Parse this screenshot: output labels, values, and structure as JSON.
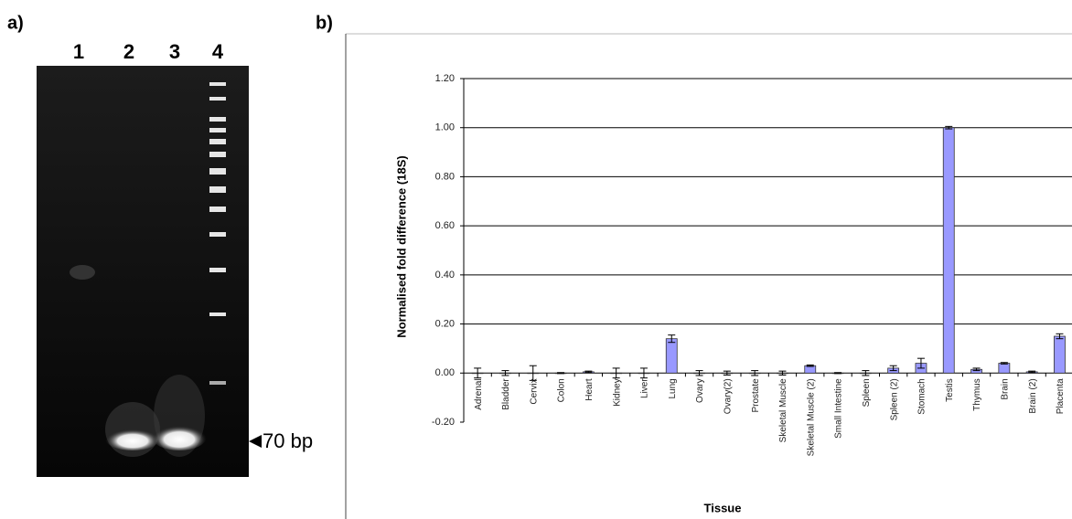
{
  "panel_a": {
    "label": "a)",
    "lanes": [
      "1",
      "2",
      "3",
      "4"
    ],
    "marker": "70 bp"
  },
  "chart_data": {
    "type": "bar",
    "panel_label": "b)",
    "ylabel": "Normalised fold difference (18S)",
    "xlabel": "Tissue",
    "categories": [
      "Adrenal",
      "Bladder",
      "Cervix",
      "Colon",
      "Heart",
      "Kidney",
      "Liver",
      "Lung",
      "Ovary",
      "Ovary(2)",
      "Prostate",
      "Skeletal Muscle",
      "Skeletal Muscle (2)",
      "Small Intestine",
      "Spleen",
      "Spleen (2)",
      "Stomach",
      "Testis",
      "Thymus",
      "Brain",
      "Brain (2)",
      "Placenta"
    ],
    "values": [
      0,
      0,
      0,
      0,
      0.005,
      0,
      0,
      0.14,
      0,
      0,
      0,
      0,
      0.03,
      0,
      0,
      0.02,
      0.04,
      1.0,
      0.015,
      0.04,
      0.005,
      0.15
    ],
    "errors": [
      0.02,
      0.01,
      0.03,
      0.002,
      0.003,
      0.02,
      0.02,
      0.015,
      0.01,
      0.008,
      0.01,
      0.008,
      0.003,
      0.002,
      0.01,
      0.01,
      0.02,
      0.005,
      0.005,
      0.003,
      0.003,
      0.01
    ],
    "color": "#9999ff",
    "ylim": [
      -0.2,
      1.2
    ],
    "yticks": [
      {
        "value": -0.2,
        "label": "-0.20"
      },
      {
        "value": 0,
        "label": "0.00"
      },
      {
        "value": 0.2,
        "label": "0.20"
      },
      {
        "value": 0.4,
        "label": "0.40"
      },
      {
        "value": 0.6,
        "label": "0.60"
      },
      {
        "value": 0.8,
        "label": "0.80"
      },
      {
        "value": 1.0,
        "label": "1.00"
      },
      {
        "value": 1.2,
        "label": "1.20"
      }
    ],
    "grid": true
  }
}
